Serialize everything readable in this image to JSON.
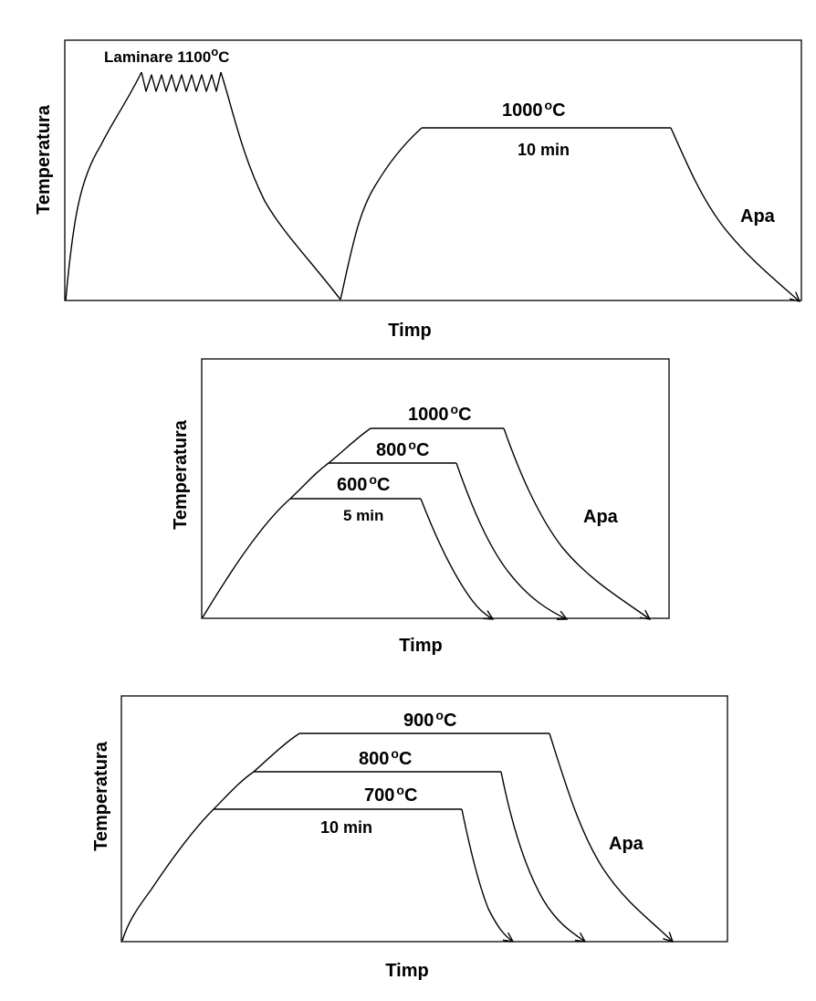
{
  "panel1": {
    "ylabel": "Temperatura",
    "xlabel": "Timp",
    "laminare_text": "Laminare 1100",
    "laminare_deg": "o",
    "laminare_unit": "C",
    "hold_temp": "1000",
    "hold_deg": "o",
    "hold_unit": "C",
    "hold_time": "10 min",
    "quench": "Apa"
  },
  "panel2": {
    "ylabel": "Temperatura",
    "xlabel": "Timp",
    "temps": [
      {
        "value": "1000",
        "deg": "o",
        "unit": "C"
      },
      {
        "value": "800",
        "deg": "o",
        "unit": "C"
      },
      {
        "value": "600",
        "deg": "o",
        "unit": "C"
      }
    ],
    "hold_time": "5 min",
    "quench": "Apa"
  },
  "panel3": {
    "ylabel": "Temperatura",
    "xlabel": "Timp",
    "temps": [
      {
        "value": "900",
        "deg": "o",
        "unit": "C"
      },
      {
        "value": "800",
        "deg": "o",
        "unit": "C"
      },
      {
        "value": "700",
        "deg": "o",
        "unit": "C"
      }
    ],
    "hold_time": "10 min",
    "quench": "Apa"
  }
}
